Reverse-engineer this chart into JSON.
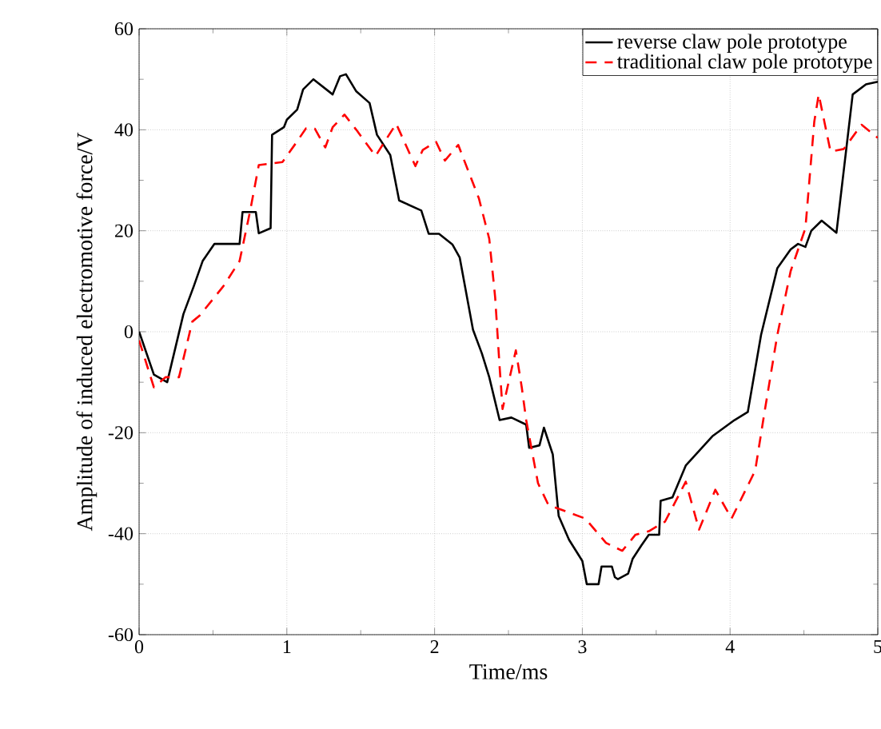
{
  "chart_data": {
    "type": "line",
    "xlabel": "Time/ms",
    "ylabel": "Amplitude of induced electromotive force/V",
    "xlim": [
      0,
      5
    ],
    "ylim": [
      -60,
      60
    ],
    "xticks": [
      0,
      1,
      2,
      3,
      4,
      5
    ],
    "yticks": [
      -60,
      -40,
      -20,
      0,
      20,
      40,
      60
    ],
    "grid": true,
    "legend": "top right",
    "marker": "none",
    "series": [
      {
        "name": "reverse claw pole prototype",
        "color": "#000000",
        "line_style": "solid",
        "x": [
          0,
          0.1,
          0.19,
          0.3,
          0.37,
          0.43,
          0.51,
          0.68,
          0.7,
          0.79,
          0.81,
          0.89,
          0.9,
          0.98,
          1.0,
          1.07,
          1.11,
          1.18,
          1.31,
          1.36,
          1.4,
          1.47,
          1.56,
          1.61,
          1.7,
          1.76,
          1.91,
          1.96,
          2.03,
          2.12,
          2.17,
          2.26,
          2.32,
          2.37,
          2.44,
          2.52,
          2.62,
          2.64,
          2.71,
          2.74,
          2.8,
          2.84,
          2.91,
          3.0,
          3.03,
          3.11,
          3.13,
          3.2,
          3.22,
          3.24,
          3.31,
          3.34,
          3.4,
          3.45,
          3.52,
          3.53,
          3.61,
          3.7,
          3.88,
          4.03,
          4.12,
          4.21,
          4.32,
          4.41,
          4.46,
          4.51,
          4.55,
          4.62,
          4.72,
          4.83,
          4.92,
          5.0
        ],
        "values": [
          0,
          -8.5,
          -10,
          3.5,
          9,
          14,
          17.4,
          17.4,
          23.7,
          23.7,
          19.5,
          20.5,
          39,
          40.5,
          42,
          44,
          48,
          50,
          47,
          50.6,
          51,
          47.6,
          45.3,
          39,
          35,
          26,
          24,
          19.4,
          19.4,
          17.3,
          14.7,
          0.4,
          -4.3,
          -9,
          -17.5,
          -17,
          -18.4,
          -23,
          -22.5,
          -19,
          -24.3,
          -36.5,
          -41.2,
          -45.4,
          -50,
          -50,
          -46.5,
          -46.5,
          -48.6,
          -49,
          -47.9,
          -45,
          -42.3,
          -40.2,
          -40.2,
          -33.5,
          -32.8,
          -26.5,
          -20.7,
          -17.5,
          -15.9,
          -0.6,
          12.6,
          16.3,
          17.4,
          16.8,
          20,
          22,
          19.6,
          47,
          49,
          49.5
        ]
      },
      {
        "name": "traditional claw pole prototype",
        "color": "#ff0000",
        "line_style": "dashed",
        "x": [
          0,
          0.1,
          0.18,
          0.27,
          0.36,
          0.41,
          0.57,
          0.68,
          0.75,
          0.81,
          0.97,
          1.06,
          1.13,
          1.19,
          1.26,
          1.31,
          1.39,
          1.47,
          1.6,
          1.74,
          1.87,
          1.92,
          2.01,
          2.07,
          2.16,
          2.3,
          2.37,
          2.41,
          2.44,
          2.46,
          2.55,
          2.59,
          2.62,
          2.7,
          2.77,
          3.02,
          3.16,
          3.27,
          3.36,
          3.45,
          3.56,
          3.7,
          3.79,
          3.9,
          4.01,
          4.17,
          4.23,
          4.32,
          4.41,
          4.51,
          4.57,
          4.6,
          4.68,
          4.77,
          4.89,
          5.0
        ],
        "values": [
          -1.7,
          -11,
          -9,
          -9,
          2,
          3.2,
          9,
          14,
          23.7,
          33,
          33.6,
          37.3,
          40.3,
          40.2,
          36.5,
          40.5,
          43,
          40,
          34.8,
          41.2,
          32.8,
          36,
          37.6,
          33.9,
          37,
          26.4,
          18.4,
          6.8,
          -6.9,
          -15.3,
          -3.7,
          -11,
          -17.5,
          -30,
          -34.3,
          -37,
          -41.8,
          -43.4,
          -40.2,
          -39.5,
          -37.6,
          -29.7,
          -39.2,
          -31.3,
          -37,
          -27.5,
          -16.5,
          -0.6,
          12,
          20.5,
          41.6,
          47,
          35.7,
          36.2,
          41,
          38.4
        ]
      }
    ]
  }
}
